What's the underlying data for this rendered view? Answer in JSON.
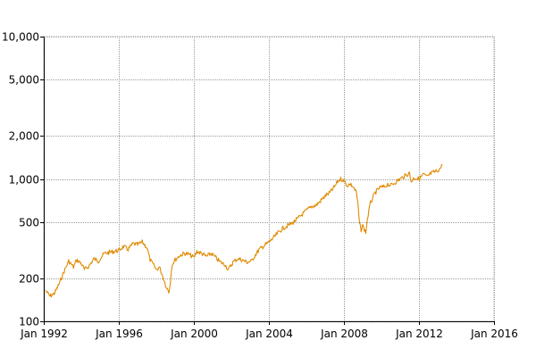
{
  "chart_data": {
    "type": "line",
    "title": "",
    "xlabel": "",
    "ylabel": "",
    "y_scale": "log",
    "xlim": [
      "1992-01-01",
      "2016-01-01"
    ],
    "ylim": [
      100,
      10000
    ],
    "grid": true,
    "legend": "none",
    "x_ticks": [
      {
        "value": "1992-01-01",
        "label": "Jan 1992"
      },
      {
        "value": "1996-01-01",
        "label": "Jan 1996"
      },
      {
        "value": "2000-01-01",
        "label": "Jan 2000"
      },
      {
        "value": "2004-01-01",
        "label": "Jan 2004"
      },
      {
        "value": "2008-01-01",
        "label": "Jan 2008"
      },
      {
        "value": "2012-01-01",
        "label": "Jan 2012"
      },
      {
        "value": "2016-01-01",
        "label": "Jan 2016"
      }
    ],
    "y_ticks": [
      {
        "value": 100,
        "label": "100"
      },
      {
        "value": 200,
        "label": "200"
      },
      {
        "value": 500,
        "label": "500"
      },
      {
        "value": 1000,
        "label": "1,000"
      },
      {
        "value": 2000,
        "label": "2,000"
      },
      {
        "value": 5000,
        "label": "5,000"
      },
      {
        "value": 10000,
        "label": "10,000"
      }
    ],
    "series": [
      {
        "color": "#e08a00",
        "x": [
          "1992-02-01",
          "1992-05-01",
          "1992-08-01",
          "1992-11-01",
          "1993-02-01",
          "1993-05-01",
          "1993-08-01",
          "1993-10-01",
          "1994-01-01",
          "1994-03-01",
          "1994-06-01",
          "1994-09-01",
          "1994-12-01",
          "1995-02-01",
          "1995-04-01",
          "1995-07-01",
          "1995-10-01",
          "1996-01-01",
          "1996-04-01",
          "1996-07-01",
          "1996-10-01",
          "1997-01-01",
          "1997-04-01",
          "1997-07-01",
          "1997-09-01",
          "1997-11-01",
          "1998-01-01",
          "1998-03-01",
          "1998-05-01",
          "1998-07-01",
          "1998-09-01",
          "1998-10-01",
          "1998-11-01",
          "1999-01-01",
          "1999-04-01",
          "1999-07-01",
          "1999-10-01",
          "2000-01-01",
          "2000-03-01",
          "2000-06-01",
          "2000-09-01",
          "2000-12-01",
          "2001-03-01",
          "2001-06-01",
          "2001-09-01",
          "2001-11-01",
          "2002-02-01",
          "2002-05-01",
          "2002-08-01",
          "2002-11-01",
          "2003-02-01",
          "2003-04-01",
          "2003-07-01",
          "2003-10-01",
          "2004-01-01",
          "2004-04-01",
          "2004-07-01",
          "2004-10-01",
          "2005-01-01",
          "2005-04-01",
          "2005-07-01",
          "2005-10-01",
          "2006-01-01",
          "2006-04-01",
          "2006-07-01",
          "2006-10-01",
          "2007-01-01",
          "2007-04-01",
          "2007-07-01",
          "2007-09-01",
          "2007-11-01",
          "2008-01-01",
          "2008-03-01",
          "2008-05-01",
          "2008-07-01",
          "2008-09-01",
          "2008-10-01",
          "2008-11-01",
          "2008-12-01",
          "2009-01-01",
          "2009-03-01",
          "2009-04-01",
          "2009-06-01",
          "2009-09-01",
          "2009-12-01",
          "2010-03-01",
          "2010-05-01",
          "2010-07-01",
          "2010-10-01",
          "2011-01-01",
          "2011-04-01",
          "2011-07-01",
          "2011-08-01",
          "2011-10-01",
          "2012-01-01",
          "2012-04-01",
          "2012-06-01",
          "2012-09-01",
          "2012-12-01",
          "2013-02-01",
          "2013-04-01"
        ],
        "values": [
          165,
          150,
          158,
          185,
          225,
          265,
          240,
          270,
          255,
          230,
          245,
          275,
          265,
          285,
          300,
          305,
          310,
          315,
          335,
          320,
          350,
          345,
          360,
          330,
          270,
          250,
          230,
          240,
          210,
          180,
          160,
          190,
          250,
          270,
          290,
          300,
          295,
          280,
          310,
          300,
          285,
          300,
          280,
          260,
          250,
          230,
          260,
          275,
          270,
          260,
          265,
          290,
          320,
          340,
          360,
          385,
          420,
          450,
          470,
          490,
          520,
          560,
          600,
          640,
          650,
          700,
          760,
          800,
          880,
          960,
          1000,
          980,
          900,
          920,
          880,
          800,
          650,
          480,
          440,
          470,
          420,
          520,
          680,
          800,
          870,
          880,
          920,
          900,
          950,
          1000,
          1050,
          1100,
          960,
          1020,
          1000,
          1080,
          1030,
          1100,
          1130,
          1170,
          1250
        ]
      }
    ]
  }
}
